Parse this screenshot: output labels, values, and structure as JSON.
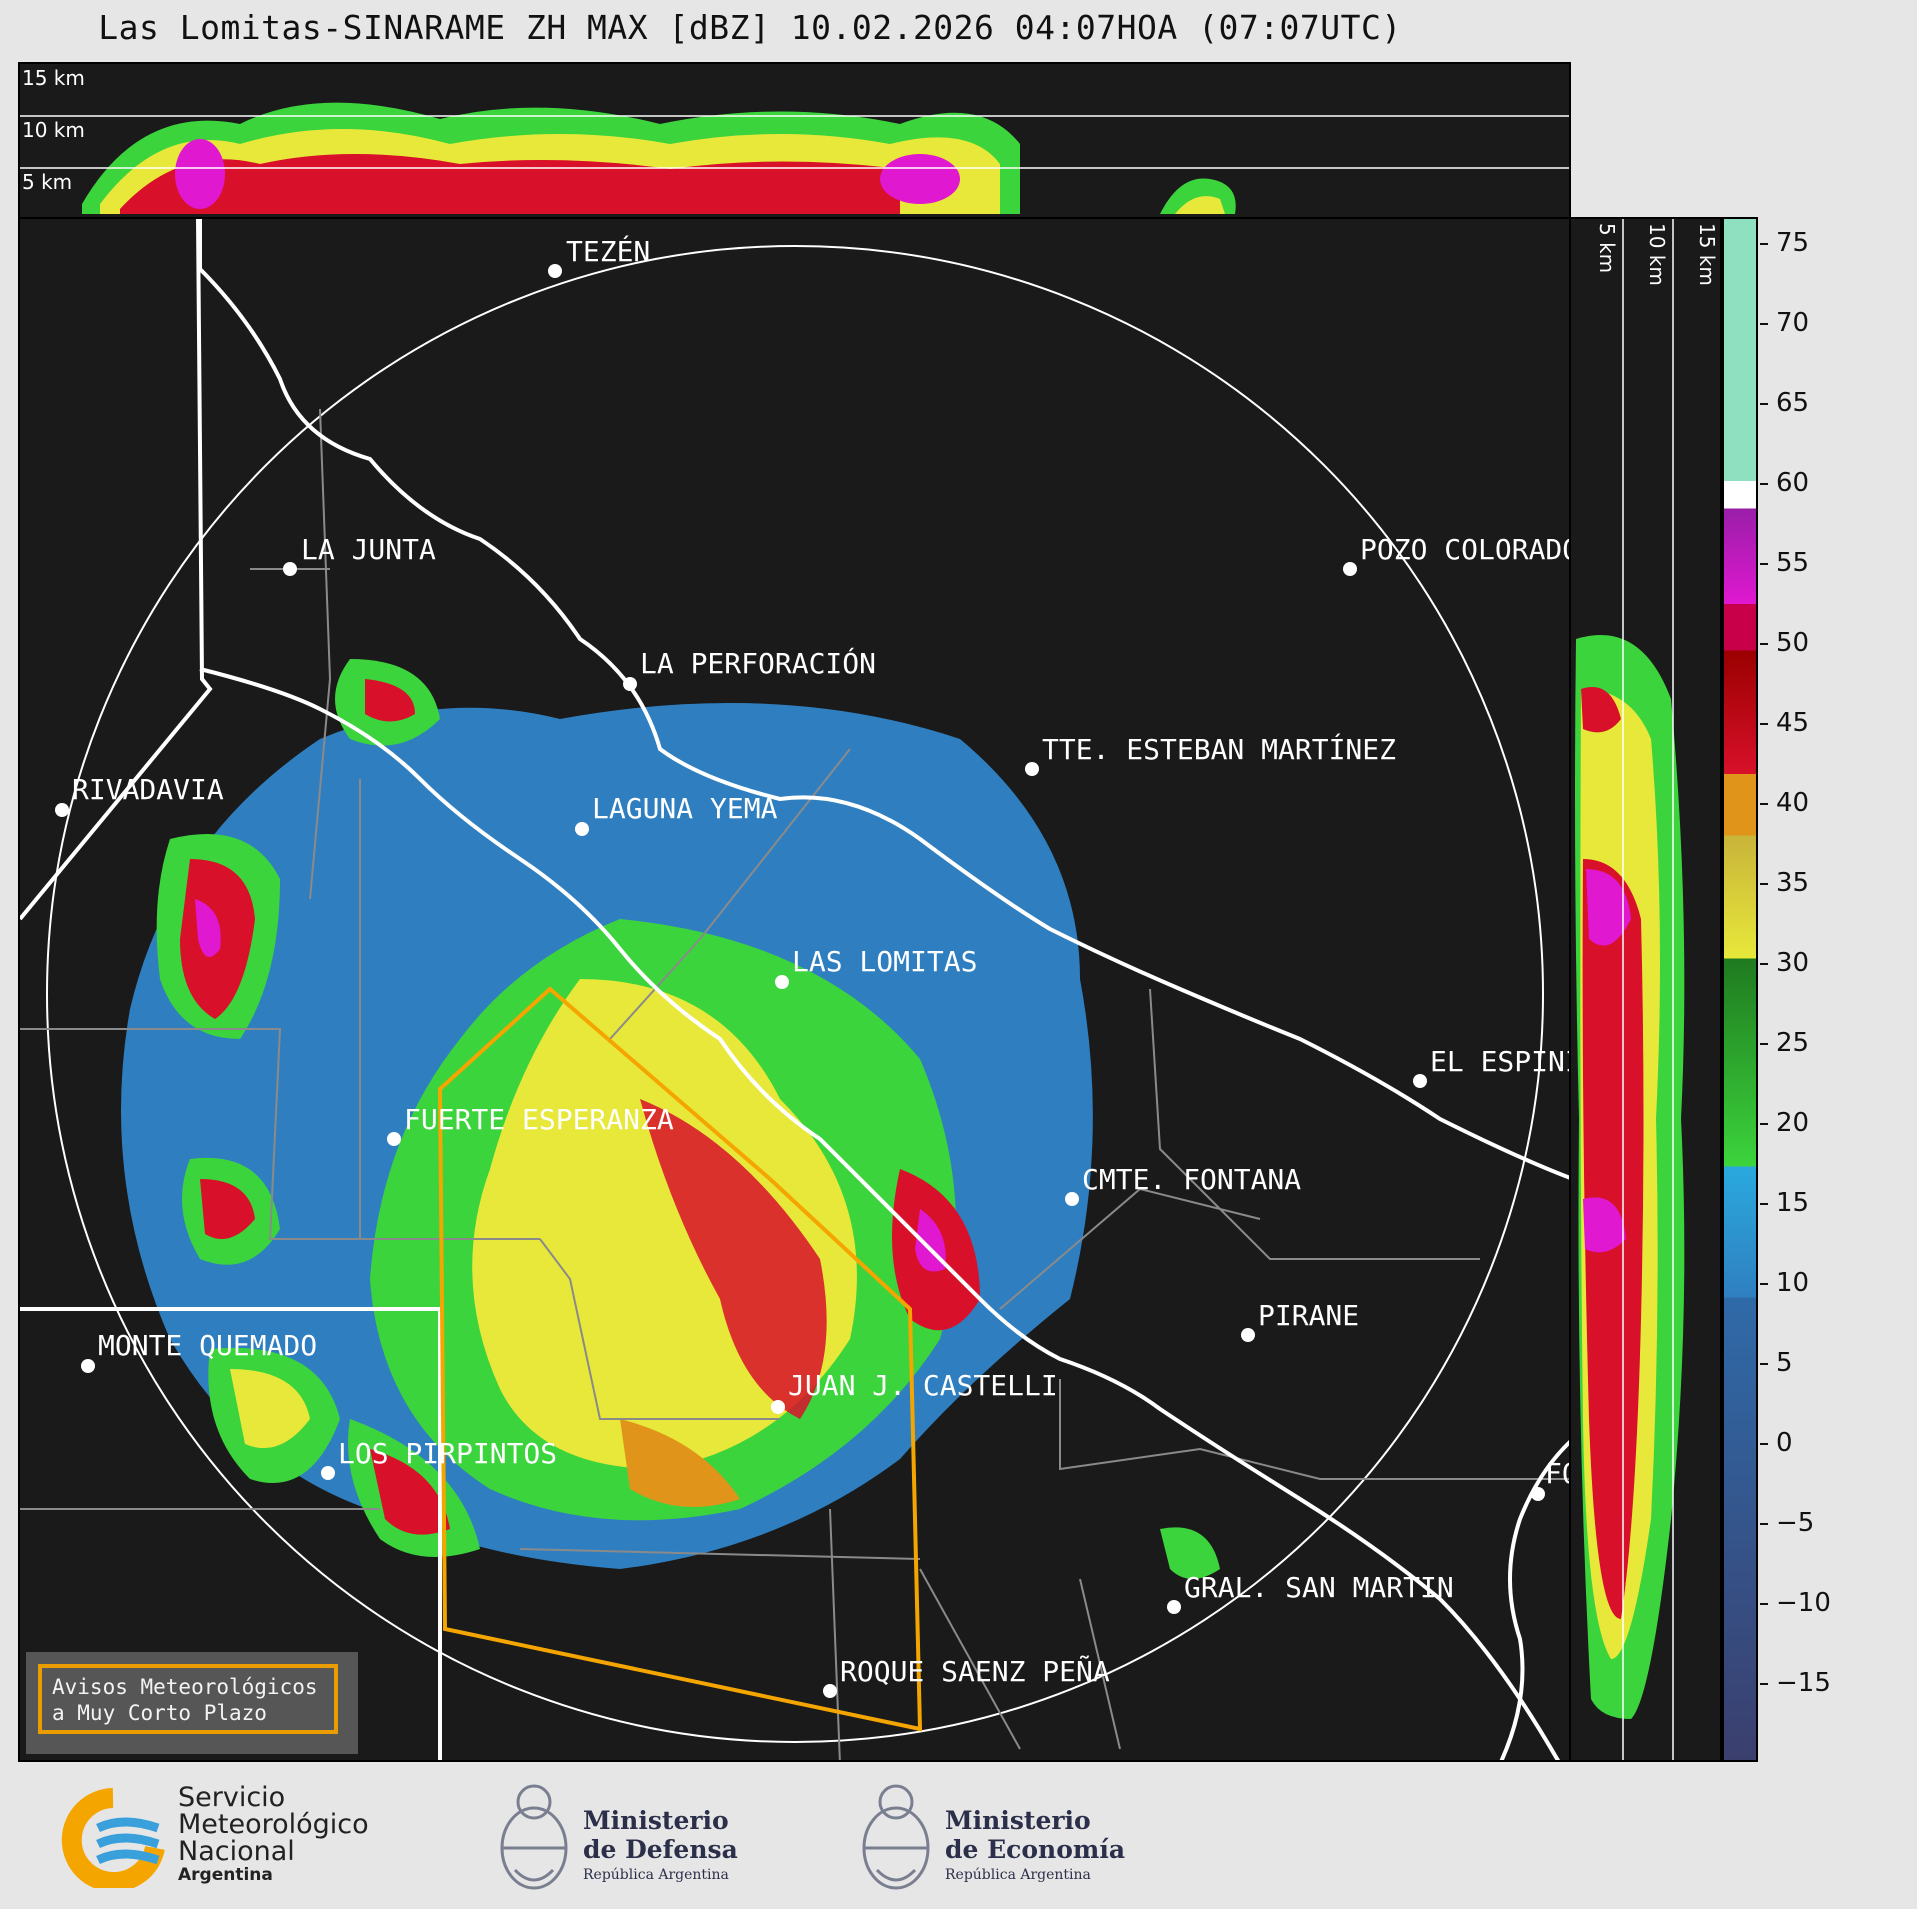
{
  "title": "Las Lomitas-SINARAME ZH MAX [dBZ] 10.02.2026 04:07HOA (07:07UTC)",
  "height_labels": [
    "15 km",
    "10 km",
    "5 km"
  ],
  "side_height_labels": [
    "5 km",
    "10 km",
    "15 km"
  ],
  "localities": [
    {
      "name": "TEZÉN"
    },
    {
      "name": "LA JUNTA"
    },
    {
      "name": "POZO COLORADO"
    },
    {
      "name": "LA PERFORACIÓN"
    },
    {
      "name": "TTE. ESTEBAN MARTÍNEZ"
    },
    {
      "name": "RIVADAVIA"
    },
    {
      "name": "LAGUNA YEMA"
    },
    {
      "name": "LAS LOMITAS"
    },
    {
      "name": "EL ESPINILLO"
    },
    {
      "name": "FUERTE ESPERANZA"
    },
    {
      "name": "CMTE. FONTANA"
    },
    {
      "name": "PIRANE"
    },
    {
      "name": "MONTE QUEMADO"
    },
    {
      "name": "JUAN J. CASTELLI"
    },
    {
      "name": "LOS PIRPINTOS"
    },
    {
      "name": "GRAL. SAN MARTIN"
    },
    {
      "name": "ROQUE SAENZ PEÑA"
    },
    {
      "name": "FORMOSA"
    }
  ],
  "colorbar": {
    "unit": "dBZ",
    "ticks": [
      "75",
      "70",
      "65",
      "60",
      "55",
      "50",
      "45",
      "40",
      "35",
      "30",
      "25",
      "20",
      "15",
      "10",
      "5",
      "0",
      "−5",
      "−10",
      "−15"
    ],
    "colors": {
      "low": "#3a3f6e",
      "blue": "#2f7fc0",
      "cyan": "#2aa9de",
      "green": "#3cd43c",
      "darkgreen": "#1f7a1f",
      "yellow": "#e8e83a",
      "orange": "#e0951a",
      "red": "#d8102a",
      "darkred": "#9a0000",
      "magenta": "#e018d0",
      "purple": "#9a1ea8",
      "white": "#ffffff",
      "mint": "#8fe0c0"
    }
  },
  "warning_box": {
    "line1": "Avisos Meteorológicos",
    "line2": "a Muy Corto Plazo",
    "color": "#f5a500"
  },
  "logos": {
    "smn": {
      "line1": "Servicio",
      "line2": "Meteorológico",
      "line3": "Nacional",
      "line4": "Argentina"
    },
    "defensa": {
      "line1": "Ministerio",
      "line2": "de Defensa",
      "line3": "República Argentina"
    },
    "economia": {
      "line1": "Ministerio",
      "line2": "de Economía",
      "line3": "República Argentina"
    }
  }
}
